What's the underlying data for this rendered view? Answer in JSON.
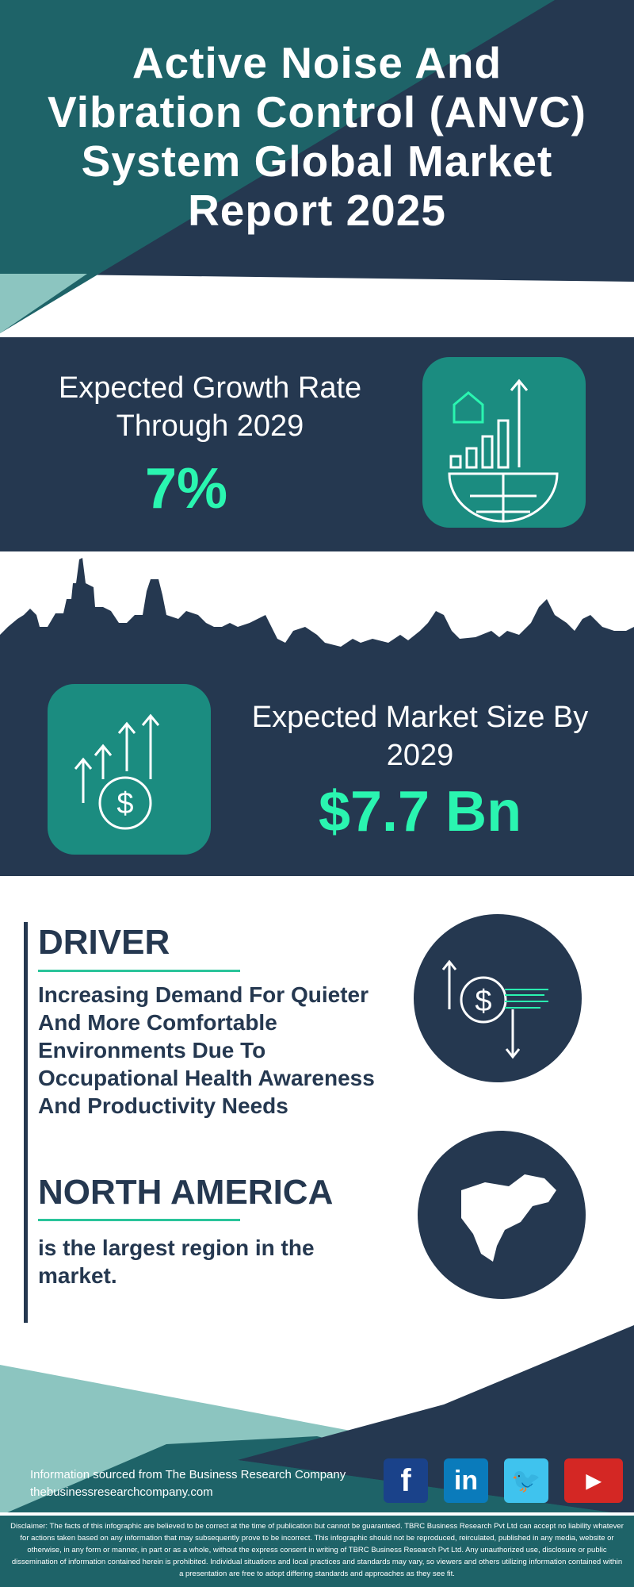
{
  "header": {
    "title": "Active Noise And Vibration Control (ANVC) System Global Market Report 2025"
  },
  "growth": {
    "label": "Expected Growth Rate Through 2029",
    "value": "7%"
  },
  "market": {
    "label": "Expected Market Size By 2029",
    "value": "$7.7 Bn"
  },
  "driver": {
    "heading": "DRIVER",
    "text": "Increasing Demand For Quieter And More Comfortable Environments Due To Occupational Health Awareness And Productivity Needs"
  },
  "region": {
    "heading": "NORTH AMERICA",
    "text": "is the largest region in the market."
  },
  "footer": {
    "source": "Information sourced from The Business Research Company",
    "website": "thebusinessresearchcompany.com",
    "social": [
      "facebook",
      "linkedin",
      "twitter",
      "youtube"
    ]
  },
  "disclaimer": "Disclaimer: The facts of this infographic are believed to be correct at the time of publication but cannot be guaranteed. TBRC Business Research Pvt Ltd can accept no liability whatever for actions taken based on any information that may subsequently prove to be incorrect. This infographic should not be reproduced, reirculated, published in any media, website or otherwise, in any form or manner, in part or as a whole, without the express consent in writing of TBRC Business Research Pvt Ltd. Any unauthorized use, disclosure or public dissemination of information contained herein is prohibited. Individual situations and local practices and standards may vary, so viewers and others utilizing information contained within a presentation are free to adopt differing standards and approaches as they see fit.",
  "colors": {
    "navy": "#253850",
    "teal": "#1e6368",
    "light_teal": "#8cc5c0",
    "accent": "#2af5b0",
    "icon_box": "#1b8c80"
  }
}
